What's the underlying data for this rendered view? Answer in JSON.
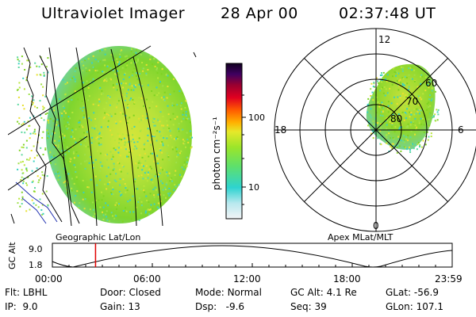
{
  "header": {
    "title": "Ultraviolet Imager",
    "date": "28 Apr 00",
    "time": "02:37:48 UT"
  },
  "colorbar": {
    "label": "photon cm⁻²s⁻¹",
    "ticks": [
      "100",
      "10"
    ]
  },
  "polar": {
    "mlt_labels": {
      "top": "12",
      "left": "18",
      "right": "6",
      "bottom": "0"
    },
    "lat_labels": [
      "60",
      "70",
      "80"
    ]
  },
  "panels": {
    "left_label": "Geographic Lat/Lon",
    "right_label": "Apex MLat/MLT"
  },
  "timeline": {
    "ylabel": "GC Alt",
    "yticks": [
      "9.0",
      "1.8"
    ],
    "xticks": [
      "00:00",
      "06:00",
      "12:00",
      "18:00",
      "23:59"
    ],
    "current_time_fraction": 0.108
  },
  "info": {
    "row1": [
      {
        "label": "Flt:",
        "value": "LBHL"
      },
      {
        "label": "Door:",
        "value": "Closed"
      },
      {
        "label": "Mode:",
        "value": "Normal"
      },
      {
        "label": "GC Alt:",
        "value": "4.1 Re"
      },
      {
        "label": "GLat:",
        "value": "-56.9"
      }
    ],
    "row2": [
      {
        "label": "IP:",
        "value": "9.0"
      },
      {
        "label": "Gain:",
        "value": "13"
      },
      {
        "label": "Dsp:",
        "value": "-9.6"
      },
      {
        "label": "Seq:",
        "value": "39"
      },
      {
        "label": "GLon:",
        "value": "107.1"
      }
    ]
  },
  "colors": {
    "green": "#7ed321",
    "light_green": "#b8e63a",
    "yellow": "#e8e030",
    "cyan": "#3ad1c0",
    "timeline_marker": "#e00000",
    "coast": "#2030b0"
  }
}
